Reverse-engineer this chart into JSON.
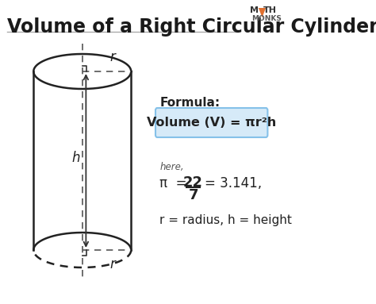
{
  "title": "Volume of a Right Circular Cylinder",
  "bg_color": "#ffffff",
  "title_color": "#1a1a1a",
  "title_fontsize": 17,
  "formula_label": "Formula:",
  "formula_box_text": "Volume (V) = πr²h",
  "formula_box_color": "#d6eaf8",
  "formula_box_border": "#85c1e9",
  "here_text": "here,",
  "rh_text": "r = radius, h = height",
  "line_color": "#333333",
  "dashed_color": "#555555",
  "arrow_color": "#333333",
  "right_angle_color": "#333333",
  "cylinder_color": "#222222",
  "text_color": "#222222",
  "logo_orange": "#e07030",
  "logo_dark": "#333333",
  "logo_gray": "#555555"
}
